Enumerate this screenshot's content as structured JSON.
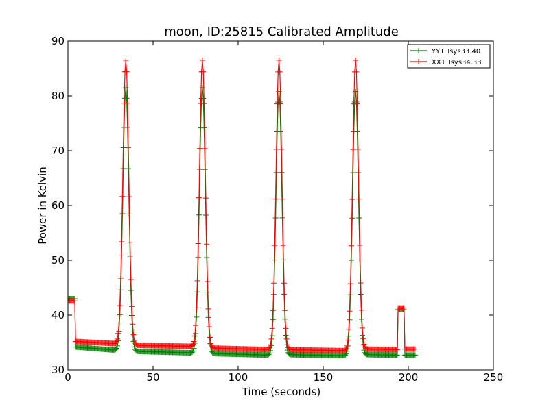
{
  "chart_data": {
    "type": "line",
    "title": "moon, ID:25815 Calibrated Amplitude",
    "xlabel": "Time (seconds)",
    "ylabel": "Power in Kelvin",
    "xlim": [
      0,
      250
    ],
    "ylim": [
      30,
      90
    ],
    "xticks": [
      0,
      50,
      100,
      150,
      200,
      250
    ],
    "yticks": [
      30,
      40,
      50,
      60,
      70,
      80,
      90
    ],
    "grid": false,
    "legend_position": "top-right",
    "marker": "plus",
    "peaks": [
      {
        "center": 34,
        "yy1": 81.5,
        "xx1": 86.5
      },
      {
        "center": 79,
        "yy1": 81.5,
        "xx1": 86.5
      },
      {
        "center": 124,
        "yy1": 80.8,
        "xx1": 86.5
      },
      {
        "center": 169,
        "yy1": 80.8,
        "xx1": 86.5
      }
    ],
    "series": [
      {
        "name": "YY1 Tsys33.40",
        "color": "#008000",
        "start_level": 43,
        "baselines": [
          {
            "from": 4,
            "to": 28,
            "start": 34.2,
            "end": 33.6
          },
          {
            "from": 39,
            "to": 74,
            "start": 33.4,
            "end": 33.1
          },
          {
            "from": 84,
            "to": 119,
            "start": 33.0,
            "end": 32.7
          },
          {
            "from": 129,
            "to": 164,
            "start": 32.8,
            "end": 32.6
          },
          {
            "from": 174,
            "to": 194,
            "start": 32.8,
            "end": 32.7
          }
        ],
        "cal_step": {
          "from": 194,
          "to": 198,
          "level": 41
        },
        "end_level": 32.7
      },
      {
        "name": "XX1 Tsys34.33",
        "color": "#ff0000",
        "start_level": 42.6,
        "baselines": [
          {
            "from": 4,
            "to": 28,
            "start": 35.2,
            "end": 34.8
          },
          {
            "from": 39,
            "to": 74,
            "start": 34.5,
            "end": 34.3
          },
          {
            "from": 84,
            "to": 119,
            "start": 34.0,
            "end": 33.7
          },
          {
            "from": 129,
            "to": 164,
            "start": 33.7,
            "end": 33.5
          },
          {
            "from": 174,
            "to": 194,
            "start": 33.8,
            "end": 33.7
          }
        ],
        "cal_step": {
          "from": 194,
          "to": 198,
          "level": 41.3
        },
        "end_level": 33.8
      }
    ]
  }
}
